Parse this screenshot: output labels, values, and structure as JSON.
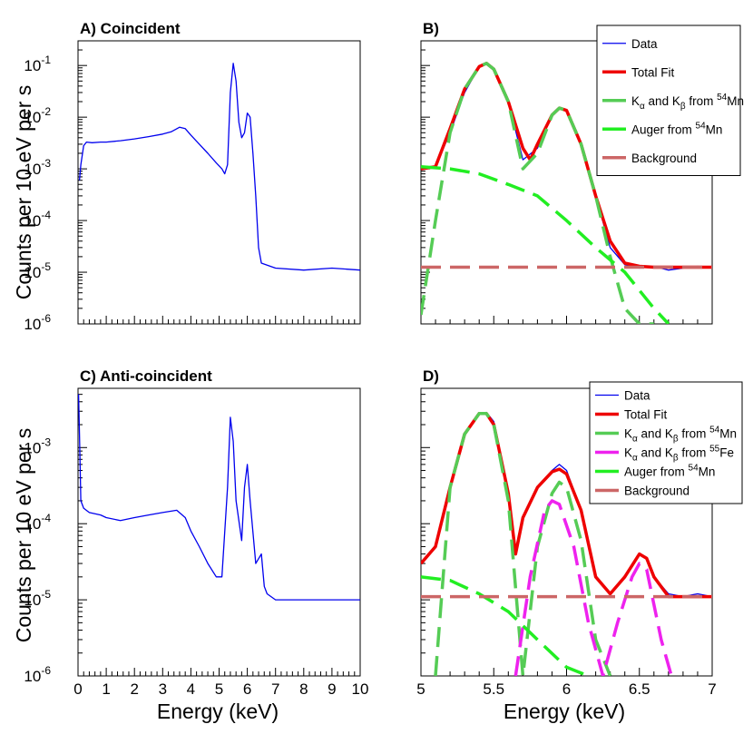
{
  "figure": {
    "y_axis_title": "Counts per 10 eV per s",
    "x_axis_title": "Energy (keV)"
  },
  "chart_data": [
    {
      "id": "A",
      "type": "line",
      "title": "A)  Coincident",
      "xlabel": "",
      "ylabel": "Counts per 10 eV per s",
      "xlim": [
        0,
        10
      ],
      "ylim": [
        1e-06,
        0.3
      ],
      "y_scale": "log",
      "x_tick_labels": [],
      "y_tick_labels": [
        "10^-6",
        "10^-5",
        "10^-4",
        "10^-3",
        "10^-2",
        "10^-1"
      ],
      "series": [
        {
          "color": "#0000ee",
          "x": [
            0.05,
            0.1,
            0.2,
            0.3,
            0.5,
            0.8,
            1.0,
            1.5,
            2.0,
            2.5,
            3.0,
            3.3,
            3.6,
            3.8,
            4.0,
            4.3,
            4.6,
            4.9,
            5.1,
            5.2,
            5.3,
            5.4,
            5.5,
            5.6,
            5.7,
            5.8,
            5.9,
            6.0,
            6.1,
            6.2,
            6.3,
            6.4,
            6.5,
            7.0,
            8.0,
            9.0,
            10.0
          ],
          "y": [
            0.0006,
            0.0012,
            0.0028,
            0.0033,
            0.0032,
            0.0033,
            0.0033,
            0.0035,
            0.0038,
            0.0042,
            0.0047,
            0.0052,
            0.0064,
            0.006,
            0.0045,
            0.003,
            0.002,
            0.0013,
            0.001,
            0.0008,
            0.0012,
            0.03,
            0.11,
            0.05,
            0.008,
            0.004,
            0.005,
            0.012,
            0.01,
            0.002,
            0.0003,
            3e-05,
            1.5e-05,
            1.2e-05,
            1.1e-05,
            1.2e-05,
            1.1e-05
          ]
        }
      ]
    },
    {
      "id": "B",
      "type": "line",
      "title": "B)",
      "xlabel": "",
      "xlim": [
        5.0,
        7.0
      ],
      "ylim": [
        1e-06,
        0.3
      ],
      "y_scale": "log",
      "x_tick_labels": [],
      "y_tick_labels": [],
      "legend": {
        "position": "top-right",
        "entries": [
          {
            "name": "Data",
            "color": "#0000ee",
            "style": "thin"
          },
          {
            "name": "Total Fit",
            "color": "#ee0000",
            "style": "thick"
          },
          {
            "name": "Kα and Kβ from 54Mn",
            "main": "K",
            "sub1": "α",
            "mid": " and K",
            "sub2": "β",
            "tail": " from ",
            "sup": "54",
            "end": "Mn",
            "color": "#55cc55",
            "style": "thick"
          },
          {
            "name": "Auger from 54Mn",
            "main": "Auger from ",
            "sup": "54",
            "end": "Mn",
            "color": "#22ee22",
            "style": "thick"
          },
          {
            "name": "Background",
            "color": "#cc6666",
            "style": "thick"
          }
        ]
      },
      "series": [
        {
          "name": "Data",
          "color": "#0000ee",
          "x": [
            5.0,
            5.1,
            5.2,
            5.3,
            5.4,
            5.45,
            5.5,
            5.6,
            5.7,
            5.8,
            5.9,
            5.95,
            6.0,
            6.1,
            6.2,
            6.3,
            6.4,
            6.5,
            6.6,
            6.7,
            6.8,
            6.9,
            7.0
          ],
          "y": [
            0.001,
            0.0011,
            0.005,
            0.03,
            0.095,
            0.11,
            0.08,
            0.02,
            0.0015,
            0.0025,
            0.011,
            0.015,
            0.013,
            0.003,
            0.0003,
            3e-05,
            1.4e-05,
            1.2e-05,
            1.3e-05,
            1.1e-05,
            1.2e-05,
            1.3e-05,
            1.2e-05
          ]
        },
        {
          "name": "Total Fit",
          "color": "#ee0000",
          "x": [
            5.0,
            5.1,
            5.2,
            5.3,
            5.4,
            5.45,
            5.5,
            5.6,
            5.7,
            5.75,
            5.8,
            5.9,
            5.95,
            6.0,
            6.1,
            6.2,
            6.3,
            6.4,
            6.5,
            6.6,
            6.8,
            7.0
          ],
          "y": [
            0.001,
            0.0011,
            0.006,
            0.035,
            0.095,
            0.11,
            0.085,
            0.02,
            0.0025,
            0.0015,
            0.003,
            0.011,
            0.015,
            0.0135,
            0.003,
            0.0003,
            4e-05,
            1.5e-05,
            1.3e-05,
            1.25e-05,
            1.25e-05,
            1.25e-05
          ]
        },
        {
          "name": "Kα and Kβ from 54Mn",
          "color": "#55cc55",
          "dashed": true,
          "x": [
            5.0,
            5.1,
            5.2,
            5.3,
            5.4,
            5.45,
            5.5,
            5.6,
            5.7,
            5.8,
            5.9,
            5.95,
            6.0,
            6.1,
            6.2,
            6.3,
            6.4,
            6.5,
            6.6
          ],
          "y": [
            1.5e-06,
            0.0001,
            0.005,
            0.035,
            0.095,
            0.11,
            0.085,
            0.02,
            0.001,
            0.002,
            0.011,
            0.015,
            0.0135,
            0.003,
            0.0003,
            2e-05,
            2e-06,
            1e-06,
            1e-06
          ]
        },
        {
          "name": "Auger from 54Mn",
          "color": "#22ee22",
          "dashed": true,
          "x": [
            5.0,
            5.2,
            5.4,
            5.6,
            5.8,
            6.0,
            6.2,
            6.4,
            6.6,
            6.7
          ],
          "y": [
            0.0011,
            0.001,
            0.0008,
            0.0005,
            0.0003,
            0.0001,
            3e-05,
            1e-05,
            2e-06,
            1e-06
          ]
        },
        {
          "name": "Background",
          "color": "#cc6666",
          "dashed": true,
          "x": [
            5.0,
            7.0
          ],
          "y": [
            1.25e-05,
            1.25e-05
          ]
        }
      ]
    },
    {
      "id": "C",
      "type": "line",
      "title": "C)  Anti-coincident",
      "xlabel": "Energy (keV)",
      "ylabel": "Counts per 10 eV per s",
      "xlim": [
        0,
        10
      ],
      "ylim": [
        1e-06,
        0.006
      ],
      "y_scale": "log",
      "x_tick_labels": [
        "0",
        "1",
        "2",
        "3",
        "4",
        "5",
        "6",
        "7",
        "8",
        "9",
        "10"
      ],
      "y_tick_labels": [
        "10^-6",
        "10^-5",
        "10^-4",
        "10^-3"
      ],
      "series": [
        {
          "color": "#0000ee",
          "x": [
            0.02,
            0.05,
            0.1,
            0.2,
            0.4,
            0.8,
            1.0,
            1.5,
            2.0,
            2.5,
            3.0,
            3.5,
            3.8,
            4.0,
            4.3,
            4.6,
            4.9,
            5.1,
            5.3,
            5.4,
            5.5,
            5.6,
            5.8,
            5.9,
            6.0,
            6.1,
            6.3,
            6.5,
            6.6,
            6.7,
            7.0,
            8.0,
            9.0,
            10.0
          ],
          "y": [
            0.005,
            0.0015,
            0.0002,
            0.00016,
            0.00014,
            0.00013,
            0.00012,
            0.00011,
            0.00012,
            0.00013,
            0.00014,
            0.00015,
            0.00012,
            8e-05,
            5e-05,
            3e-05,
            2e-05,
            2e-05,
            0.0003,
            0.0025,
            0.0012,
            0.0002,
            6e-05,
            0.0003,
            0.0006,
            0.0002,
            3e-05,
            4e-05,
            1.5e-05,
            1.2e-05,
            1e-05,
            1e-05,
            1e-05,
            1e-05
          ]
        }
      ]
    },
    {
      "id": "D",
      "type": "line",
      "title": "D)",
      "xlabel": "Energy (keV)",
      "xlim": [
        5.0,
        7.0
      ],
      "ylim": [
        1e-06,
        0.006
      ],
      "y_scale": "log",
      "x_tick_labels": [
        "5",
        "5.5",
        "6",
        "6.5",
        "7"
      ],
      "y_tick_labels": [],
      "legend": {
        "position": "top-right",
        "entries": [
          {
            "name": "Data",
            "color": "#0000ee",
            "style": "thin"
          },
          {
            "name": "Total Fit",
            "color": "#ee0000",
            "style": "thick"
          },
          {
            "name": "Kα and Kβ from 54Mn",
            "main": "K",
            "sub1": "α",
            "mid": " and K",
            "sub2": "β",
            "tail": " from ",
            "sup": "54",
            "end": "Mn",
            "color": "#55cc55",
            "style": "thick"
          },
          {
            "name": "Kα and Kβ from 55Fe",
            "main": "K",
            "sub1": "α",
            "mid": " and K",
            "sub2": "β",
            "tail": " from ",
            "sup": "55",
            "end": "Fe",
            "color": "#ee22ee",
            "style": "thick"
          },
          {
            "name": "Auger from 54Mn",
            "main": "Auger from ",
            "sup": "54",
            "end": "Mn",
            "color": "#22ee22",
            "style": "thick"
          },
          {
            "name": "Background",
            "color": "#cc6666",
            "style": "thick"
          }
        ]
      },
      "series": [
        {
          "name": "Data",
          "color": "#0000ee",
          "x": [
            5.0,
            5.1,
            5.2,
            5.3,
            5.4,
            5.45,
            5.5,
            5.6,
            5.65,
            5.7,
            5.8,
            5.9,
            5.95,
            6.0,
            6.1,
            6.2,
            6.3,
            6.4,
            6.5,
            6.55,
            6.6,
            6.7,
            6.8,
            6.9,
            7.0
          ],
          "y": [
            3e-05,
            5e-05,
            0.0003,
            0.0015,
            0.0028,
            0.0029,
            0.0022,
            0.00025,
            4e-05,
            0.00012,
            0.0003,
            0.0005,
            0.0006,
            0.0005,
            0.00015,
            2e-05,
            1.2e-05,
            2e-05,
            4e-05,
            3.5e-05,
            2e-05,
            1.2e-05,
            1.1e-05,
            1.2e-05,
            1.1e-05
          ]
        },
        {
          "name": "Total Fit",
          "color": "#ee0000",
          "x": [
            5.0,
            5.1,
            5.2,
            5.3,
            5.4,
            5.45,
            5.5,
            5.6,
            5.65,
            5.7,
            5.8,
            5.9,
            5.95,
            6.0,
            6.1,
            6.2,
            6.3,
            6.4,
            6.5,
            6.55,
            6.6,
            6.7,
            6.8,
            7.0
          ],
          "y": [
            3e-05,
            5e-05,
            0.0003,
            0.0015,
            0.0028,
            0.0028,
            0.002,
            0.00025,
            4e-05,
            0.00012,
            0.0003,
            0.00048,
            0.00052,
            0.00045,
            0.00015,
            2e-05,
            1.2e-05,
            2e-05,
            4e-05,
            3.5e-05,
            2e-05,
            1.1e-05,
            1.1e-05,
            1.1e-05
          ]
        },
        {
          "name": "Kα and Kβ from 54Mn",
          "color": "#55cc55",
          "dashed": true,
          "x": [
            5.1,
            5.2,
            5.3,
            5.4,
            5.45,
            5.5,
            5.6,
            5.7,
            5.8,
            5.9,
            5.95,
            6.0,
            6.1,
            6.2,
            6.3
          ],
          "y": [
            1e-06,
            0.0003,
            0.0015,
            0.0028,
            0.0028,
            0.002,
            0.0002,
            1e-06,
            5e-05,
            0.00025,
            0.00035,
            0.0003,
            6e-05,
            3e-06,
            1e-06
          ]
        },
        {
          "name": "Kα and Kβ from 55Fe",
          "color": "#ee22ee",
          "dashed": true,
          "x": [
            5.65,
            5.75,
            5.85,
            5.9,
            5.95,
            6.05,
            6.15,
            6.25,
            6.35,
            6.45,
            6.5,
            6.55,
            6.65,
            6.72
          ],
          "y": [
            1e-06,
            2e-05,
            0.00015,
            0.0002,
            0.00018,
            5e-05,
            5e-06,
            1e-06,
            5e-06,
            2e-05,
            3e-05,
            2.5e-05,
            3e-06,
            1e-06
          ]
        },
        {
          "name": "Auger from 54Mn",
          "color": "#22ee22",
          "dashed": true,
          "x": [
            5.0,
            5.2,
            5.4,
            5.6,
            5.8,
            6.0,
            6.15
          ],
          "y": [
            2e-05,
            1.8e-05,
            1.2e-05,
            7e-06,
            3e-06,
            1.3e-06,
            1e-06
          ]
        },
        {
          "name": "Background",
          "color": "#cc6666",
          "dashed": true,
          "x": [
            5.0,
            7.0
          ],
          "y": [
            1.1e-05,
            1.1e-05
          ]
        }
      ]
    }
  ]
}
